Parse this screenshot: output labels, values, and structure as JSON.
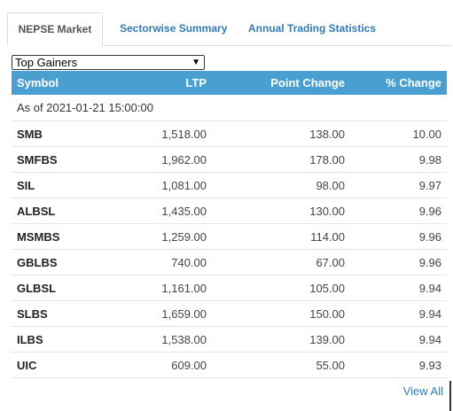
{
  "tabs": [
    {
      "label": "NEPSE Market"
    },
    {
      "label": "Sectorwise Summary"
    },
    {
      "label": "Annual Trading Statistics"
    }
  ],
  "filter": {
    "selected": "Top Gainers"
  },
  "table": {
    "headers": {
      "symbol": "Symbol",
      "ltp": "LTP",
      "point_change": "Point Change",
      "pct_change": "% Change"
    },
    "as_of": "As of 2021-01-21 15:00:00",
    "rows": [
      {
        "symbol": "SMB",
        "ltp": "1,518.00",
        "point_change": "138.00",
        "pct_change": "10.00"
      },
      {
        "symbol": "SMFBS",
        "ltp": "1,962.00",
        "point_change": "178.00",
        "pct_change": "9.98"
      },
      {
        "symbol": "SIL",
        "ltp": "1,081.00",
        "point_change": "98.00",
        "pct_change": "9.97"
      },
      {
        "symbol": "ALBSL",
        "ltp": "1,435.00",
        "point_change": "130.00",
        "pct_change": "9.96"
      },
      {
        "symbol": "MSMBS",
        "ltp": "1,259.00",
        "point_change": "114.00",
        "pct_change": "9.96"
      },
      {
        "symbol": "GBLBS",
        "ltp": "740.00",
        "point_change": "67.00",
        "pct_change": "9.96"
      },
      {
        "symbol": "GLBSL",
        "ltp": "1,161.00",
        "point_change": "105.00",
        "pct_change": "9.94"
      },
      {
        "symbol": "SLBS",
        "ltp": "1,659.00",
        "point_change": "150.00",
        "pct_change": "9.94"
      },
      {
        "symbol": "ILBS",
        "ltp": "1,538.00",
        "point_change": "139.00",
        "pct_change": "9.94"
      },
      {
        "symbol": "UIC",
        "ltp": "609.00",
        "point_change": "55.00",
        "pct_change": "9.93"
      }
    ]
  },
  "footer": {
    "view_all": "View All"
  },
  "colors": {
    "header_bg": "#4a9fd1",
    "link": "#337ab7"
  }
}
